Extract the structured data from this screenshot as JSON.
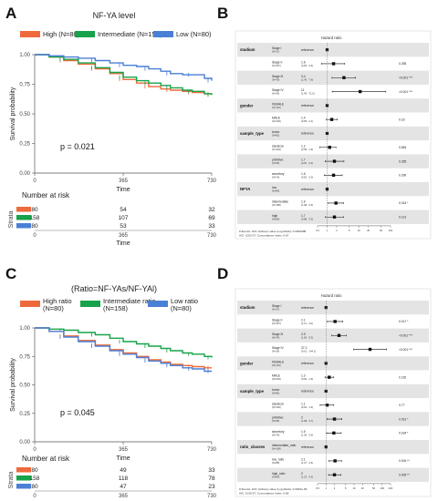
{
  "panels": {
    "A": {
      "label": "A"
    },
    "B": {
      "label": "B"
    },
    "C": {
      "label": "C"
    },
    "D": {
      "label": "D"
    }
  },
  "chart_data": [
    {
      "type": "line",
      "panel": "A",
      "title": "NF-YA level",
      "xlabel": "Time",
      "ylabel": "Survival probability",
      "xlim": [
        0,
        730
      ],
      "ylim": [
        0,
        1
      ],
      "x_ticks": [
        "0",
        "365",
        "730"
      ],
      "y_ticks": [
        "0.00",
        "0.25",
        "0.50",
        "0.75",
        "1.00"
      ],
      "legend_position": "top",
      "series": [
        {
          "name": "High (N=80)",
          "color": "#ee6a3c",
          "x": [
            0,
            60,
            120,
            180,
            250,
            310,
            365,
            420,
            470,
            520,
            560,
            610,
            650,
            700,
            730
          ],
          "y": [
            1.0,
            0.98,
            0.95,
            0.92,
            0.88,
            0.84,
            0.79,
            0.76,
            0.73,
            0.71,
            0.7,
            0.69,
            0.68,
            0.67,
            0.67
          ]
        },
        {
          "name": "Intermediate (N=158)",
          "color": "#16a34a",
          "x": [
            0,
            60,
            120,
            180,
            250,
            310,
            365,
            420,
            470,
            520,
            560,
            610,
            650,
            700,
            730
          ],
          "y": [
            1.0,
            0.98,
            0.96,
            0.93,
            0.89,
            0.85,
            0.81,
            0.78,
            0.76,
            0.74,
            0.72,
            0.7,
            0.69,
            0.67,
            0.66
          ]
        },
        {
          "name": "Low (N=80)",
          "color": "#4a7fd6",
          "x": [
            0,
            60,
            120,
            180,
            250,
            310,
            365,
            420,
            470,
            520,
            560,
            610,
            650,
            700,
            730
          ],
          "y": [
            1.0,
            0.99,
            0.98,
            0.97,
            0.95,
            0.93,
            0.91,
            0.9,
            0.88,
            0.86,
            0.84,
            0.83,
            0.83,
            0.8,
            0.78
          ]
        }
      ],
      "annotations": [
        {
          "text": "p = 0.021"
        }
      ],
      "risk_table": {
        "title": "Number at risk",
        "strata_label": "Strata",
        "times": [
          "0",
          "365",
          "730"
        ],
        "rows": [
          {
            "color": "#ee6a3c",
            "values": [
              "80",
              "54",
              "32"
            ]
          },
          {
            "color": "#16a34a",
            "values": [
              "158",
              "107",
              "69"
            ]
          },
          {
            "color": "#4a7fd6",
            "values": [
              "80",
              "53",
              "33"
            ]
          }
        ]
      }
    },
    {
      "type": "line",
      "panel": "C",
      "title": "(Ratio=NF-YAs/NF-YAl)",
      "xlabel": "Time",
      "ylabel": "Survival probability",
      "xlim": [
        0,
        730
      ],
      "ylim": [
        0,
        1
      ],
      "x_ticks": [
        "0",
        "365",
        "730"
      ],
      "y_ticks": [
        "0.00",
        "0.25",
        "0.50",
        "0.75",
        "1.00"
      ],
      "legend_position": "top",
      "series": [
        {
          "name": "High ratio (N=80)",
          "color": "#ee6a3c",
          "x": [
            0,
            60,
            120,
            180,
            250,
            310,
            365,
            420,
            470,
            520,
            560,
            610,
            650,
            700,
            730
          ],
          "y": [
            1.0,
            0.97,
            0.93,
            0.89,
            0.85,
            0.81,
            0.78,
            0.75,
            0.72,
            0.7,
            0.68,
            0.67,
            0.66,
            0.65,
            0.65
          ]
        },
        {
          "name": "Intermediate ratio (N=158)",
          "color": "#16a34a",
          "x": [
            0,
            60,
            120,
            180,
            250,
            310,
            365,
            420,
            470,
            520,
            560,
            610,
            650,
            700,
            730
          ],
          "y": [
            1.0,
            0.99,
            0.98,
            0.96,
            0.94,
            0.91,
            0.88,
            0.86,
            0.84,
            0.82,
            0.8,
            0.78,
            0.77,
            0.75,
            0.74
          ]
        },
        {
          "name": "Low ratio (N=80)",
          "color": "#4a7fd6",
          "x": [
            0,
            60,
            120,
            180,
            250,
            310,
            365,
            420,
            470,
            520,
            560,
            610,
            650,
            700,
            730
          ],
          "y": [
            1.0,
            0.97,
            0.92,
            0.88,
            0.84,
            0.8,
            0.77,
            0.74,
            0.71,
            0.69,
            0.67,
            0.65,
            0.64,
            0.62,
            0.62
          ]
        }
      ],
      "annotations": [
        {
          "text": "p = 0.045"
        }
      ],
      "risk_table": {
        "title": "Number at risk",
        "strata_label": "Strata",
        "times": [
          "0",
          "365",
          "730"
        ],
        "rows": [
          {
            "color": "#ee6a3c",
            "values": [
              "80",
              "49",
              "33"
            ]
          },
          {
            "color": "#16a34a",
            "values": [
              "158",
              "118",
              "78"
            ]
          },
          {
            "color": "#4a7fd6",
            "values": [
              "80",
              "47",
              "23"
            ]
          }
        ]
      }
    },
    {
      "type": "forest",
      "panel": "B",
      "title": "Hazard ratio",
      "x_ticks": [
        {
          "v": 0.5,
          "label": "0.5"
        },
        {
          "v": 1,
          "label": "1"
        },
        {
          "v": 2,
          "label": "2"
        },
        {
          "v": 5,
          "label": "5"
        },
        {
          "v": 10,
          "label": "10"
        },
        {
          "v": 20,
          "label": "20"
        },
        {
          "v": 50,
          "label": "50"
        },
        {
          "v": 100,
          "label": "100"
        }
      ],
      "xlim": [
        0.5,
        100
      ],
      "rows": [
        {
          "var": "stadium",
          "level": "Stage I",
          "n": "(N=17)",
          "ref": true
        },
        {
          "level": "Stage II",
          "n": "(N=137)",
          "hr": 1.6,
          "ci_text": "(0.66 - 3.6)",
          "lo": 0.66,
          "hi": 3.6,
          "p": "0.255"
        },
        {
          "level": "Stage III",
          "n": "(N=79)",
          "hr": 3.4,
          "ci_text": "(1.43 - 7.9)",
          "lo": 1.43,
          "hi": 7.9,
          "p": "<0.001 ***"
        },
        {
          "level": "Stage IV",
          "n": "(N=14)",
          "hr": 11.0,
          "ci_text": "(1.45 - 71.0)",
          "lo": 1.45,
          "hi": 71.0,
          "p": "<0.001 ***"
        },
        {
          "var": "gender",
          "level": "FEMALE",
          "n": "(N=115)",
          "ref": true
        },
        {
          "level": "MALE",
          "n": "(N=203)",
          "hr": 1.4,
          "ci_text": "(0.95 - 2.1)",
          "lo": 0.95,
          "hi": 2.1,
          "p": "0.18"
        },
        {
          "var": "sample_type",
          "level": "tumor",
          "n": "(N=82)",
          "ref": true
        },
        {
          "level": "classical",
          "n": "(N=103)",
          "hr": 1.2,
          "ci_text": "(0.59 - 1.9)",
          "lo": 0.59,
          "hi": 1.9,
          "p": "0.845"
        },
        {
          "level": "primitive",
          "n": "(N=65)",
          "hr": 1.7,
          "ci_text": "(0.87 - 3.4)",
          "lo": 0.87,
          "hi": 3.4,
          "p": "0.255"
        },
        {
          "level": "secretory",
          "n": "(N=70)",
          "hr": 1.6,
          "ci_text": "(0.82 - 3.0)",
          "lo": 0.82,
          "hi": 3.0,
          "p": "0.290"
        },
        {
          "var": "NFYA",
          "level": "low",
          "n": "(N=80)",
          "ref": true
        },
        {
          "level": "intermediate",
          "n": "(N=158)",
          "hr": 1.9,
          "ci_text": "(1.08 - 3.3)",
          "lo": 1.08,
          "hi": 3.3,
          "p": "0.024 *"
        },
        {
          "level": "high",
          "n": "(N=80)",
          "hr": 1.7,
          "ci_text": "(0.88 - 3.3)",
          "lo": 0.88,
          "hi": 3.3,
          "p": "0.113"
        }
      ],
      "footer": [
        "# Events: 103; Global p-value (Log-Rank): 0.0002588",
        "AIC: 1022.07; Concordance Index: 0.67"
      ]
    },
    {
      "type": "forest",
      "panel": "D",
      "title": "Hazard ratio",
      "x_ticks": [
        {
          "v": 0.5,
          "label": "0.5"
        },
        {
          "v": 1,
          "label": "1"
        },
        {
          "v": 2,
          "label": "2"
        },
        {
          "v": 5,
          "label": "5"
        },
        {
          "v": 10,
          "label": "10"
        },
        {
          "v": 20,
          "label": "20"
        },
        {
          "v": 50,
          "label": "50"
        },
        {
          "v": 100,
          "label": "100"
        },
        {
          "v": 200,
          "label": "200"
        }
      ],
      "xlim": [
        0.5,
        200
      ],
      "rows": [
        {
          "var": "stadium",
          "level": "Stage I",
          "n": "(N=17)",
          "ref": true
        },
        {
          "level": "Stage II",
          "n": "(N=137)",
          "hr": 2.1,
          "ci_text": "(1.11 - 4.0)",
          "lo": 1.11,
          "hi": 4.0,
          "p": "0.017 *"
        },
        {
          "level": "Stage III",
          "n": "(N=79)",
          "hr": 2.9,
          "ci_text": "(1.60 - 5.3)",
          "lo": 1.6,
          "hi": 5.3,
          "p": "<0.001 ***"
        },
        {
          "level": "Stage IV",
          "n": "(N=14)",
          "hr": 37.2,
          "ci_text": "(9.61 - 144.1)",
          "lo": 9.61,
          "hi": 144.1,
          "p": "<0.001 ***"
        },
        {
          "var": "gender",
          "level": "FEMALE",
          "n": "(N=115)",
          "ref": true
        },
        {
          "level": "MALE",
          "n": "(N=203)",
          "hr": 1.3,
          "ci_text": "(0.92 - 1.9)",
          "lo": 0.92,
          "hi": 1.9,
          "p": "0.152"
        },
        {
          "var": "sample_type",
          "level": "tumor",
          "n": "(N=82)",
          "ref": true
        },
        {
          "level": "classical",
          "n": "(N=103)",
          "hr": 1.1,
          "ci_text": "(0.62 - 1.9)",
          "lo": 0.62,
          "hi": 1.9,
          "p": "0.77"
        },
        {
          "level": "primitive",
          "n": "(N=65)",
          "hr": 2.0,
          "ci_text": "(1.08 - 3.7)",
          "lo": 1.08,
          "hi": 3.7,
          "p": "0.031 *"
        },
        {
          "level": "secretory",
          "n": "(N=70)",
          "hr": 1.9,
          "ci_text": "(1.05 - 3.5)",
          "lo": 1.05,
          "hi": 3.5,
          "p": "0.034 *"
        },
        {
          "var": "ratio_classes",
          "level": "intermediate_ratio",
          "n": "(N=158)",
          "ref": true
        },
        {
          "level": "low_ratio",
          "n": "(N=80)",
          "hr": 2.1,
          "ci_text": "(1.27 - 3.6)",
          "lo": 1.27,
          "hi": 3.6,
          "p": "0.004 **"
        },
        {
          "level": "high_ratio",
          "n": "(N=80)",
          "hr": 2.0,
          "ci_text": "(1.23 - 3.4)",
          "lo": 1.23,
          "hi": 3.4,
          "p": "0.005 **"
        }
      ],
      "footer": [
        "# Events: 103; Global p-value (Log-Rank): 2.0923e-06",
        "AIC: 1015.87; Concordance Index: 0.68"
      ]
    }
  ]
}
